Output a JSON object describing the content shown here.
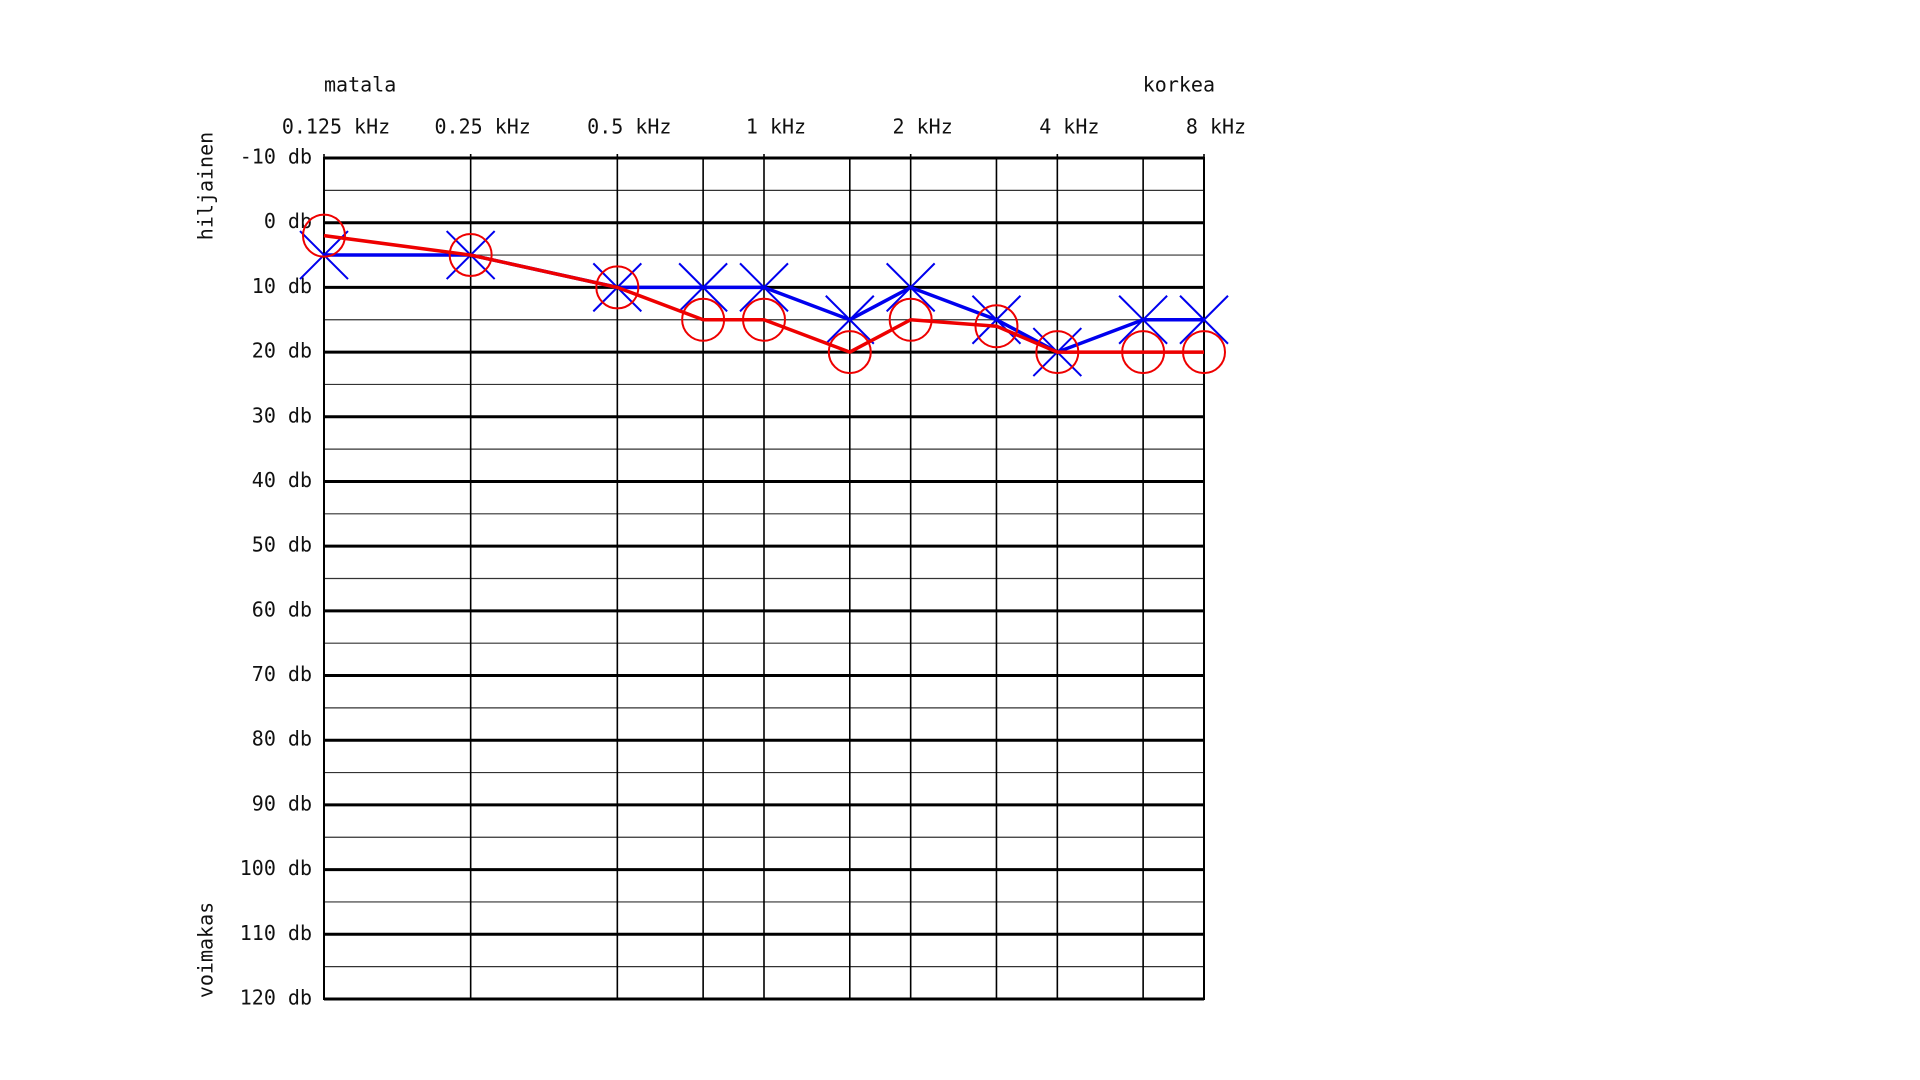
{
  "chart_data": {
    "type": "line",
    "top_left_label": "matala",
    "top_right_label": "korkea",
    "y_top_label": "hiljainen",
    "y_bottom_label": "voimakas",
    "x": [
      0.125,
      0.25,
      0.5,
      0.75,
      1,
      1.5,
      2,
      3,
      4,
      6,
      8
    ],
    "xscale": "log",
    "xlim": [
      0.125,
      8
    ],
    "xticks": [
      {
        "value": 0.125,
        "label": "0.125 kHz"
      },
      {
        "value": 0.25,
        "label": "0.25 kHz"
      },
      {
        "value": 0.5,
        "label": "0.5 kHz"
      },
      {
        "value": 1,
        "label": "1 kHz"
      },
      {
        "value": 2,
        "label": "2 kHz"
      },
      {
        "value": 4,
        "label": "4 kHz"
      },
      {
        "value": 8,
        "label": "8 kHz"
      }
    ],
    "ylim": [
      -10,
      120
    ],
    "y_inverted": true,
    "yticks": [
      {
        "value": -10,
        "label": "-10 db"
      },
      {
        "value": 0,
        "label": "0 db"
      },
      {
        "value": 10,
        "label": "10 db"
      },
      {
        "value": 20,
        "label": "20 db"
      },
      {
        "value": 30,
        "label": "30 db"
      },
      {
        "value": 40,
        "label": "40 db"
      },
      {
        "value": 50,
        "label": "50 db"
      },
      {
        "value": 60,
        "label": "60 db"
      },
      {
        "value": 70,
        "label": "70 db"
      },
      {
        "value": 80,
        "label": "80 db"
      },
      {
        "value": 90,
        "label": "90 db"
      },
      {
        "value": 100,
        "label": "100 db"
      },
      {
        "value": 110,
        "label": "110 db"
      },
      {
        "value": 120,
        "label": "120 db"
      }
    ],
    "grid": true,
    "series": [
      {
        "color": "#0000ee",
        "marker": "x",
        "values": [
          5,
          5,
          10,
          10,
          10,
          15,
          10,
          15,
          20,
          15,
          15
        ]
      },
      {
        "color": "#ee0000",
        "marker": "o",
        "values": [
          2,
          5,
          10,
          15,
          15,
          20,
          15,
          16,
          20,
          20,
          20
        ]
      }
    ]
  }
}
